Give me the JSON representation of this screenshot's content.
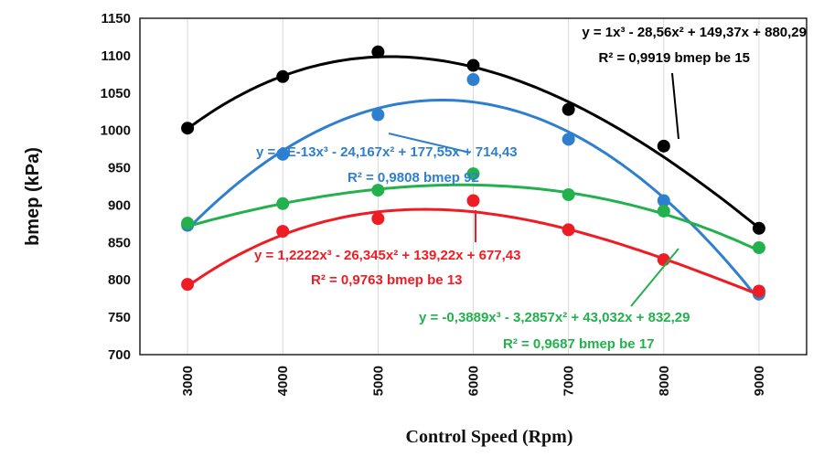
{
  "chart_data": {
    "type": "scatter",
    "xlabel": "Control Speed (Rpm)",
    "ylabel": "bmep (kPa)",
    "x": [
      3000,
      4000,
      5000,
      6000,
      7000,
      8000,
      9000
    ],
    "xlim": [
      2500,
      9500
    ],
    "ylim": [
      700,
      1150
    ],
    "y_ticks": [
      700,
      750,
      800,
      850,
      900,
      950,
      1000,
      1050,
      1100,
      1150
    ],
    "x_ticks": [
      3000,
      4000,
      5000,
      6000,
      7000,
      8000,
      9000
    ],
    "grid": "vertical",
    "series": [
      {
        "id": "be15",
        "color": "#000000",
        "values": [
          1003,
          1072,
          1105,
          1087,
          1028,
          979,
          869
        ],
        "trend_coeffs": [
          1,
          -28.56,
          149.37,
          880.29
        ],
        "equation": "y = 1x³ - 28,56x² + 149,37x + 880,29",
        "r2": "R² = 0,9919 bmep be 15"
      },
      {
        "id": "be92",
        "color": "#2f7fd0",
        "values": [
          873,
          968,
          1021,
          1068,
          988,
          906,
          781
        ],
        "trend_coeffs": [
          0,
          -24.167,
          177.55,
          714.43
        ],
        "equation": "y = 9E-13x³ - 24,167x² + 177,55x + 714,43",
        "r2": "R² = 0,9808 bmep 92"
      },
      {
        "id": "be17",
        "color": "#22b14c",
        "values": [
          876,
          902,
          920,
          942,
          914,
          892,
          843
        ],
        "trend_coeffs": [
          -0.3889,
          -3.2857,
          43.032,
          832.29
        ],
        "equation": "y = -0,3889x³ - 3,2857x² + 43,032x + 832,29",
        "r2": "R² = 0,9687 bmep be 17"
      },
      {
        "id": "be13",
        "color": "#ee1c24",
        "values": [
          794,
          865,
          882,
          906,
          867,
          827,
          785
        ],
        "trend_coeffs": [
          1.2222,
          -26.345,
          139.22,
          677.43
        ],
        "equation": "y = 1,2222x³ - 26,345x² + 139,22x + 677,43",
        "r2": "R² = 0,9763 bmep be 13"
      }
    ]
  }
}
